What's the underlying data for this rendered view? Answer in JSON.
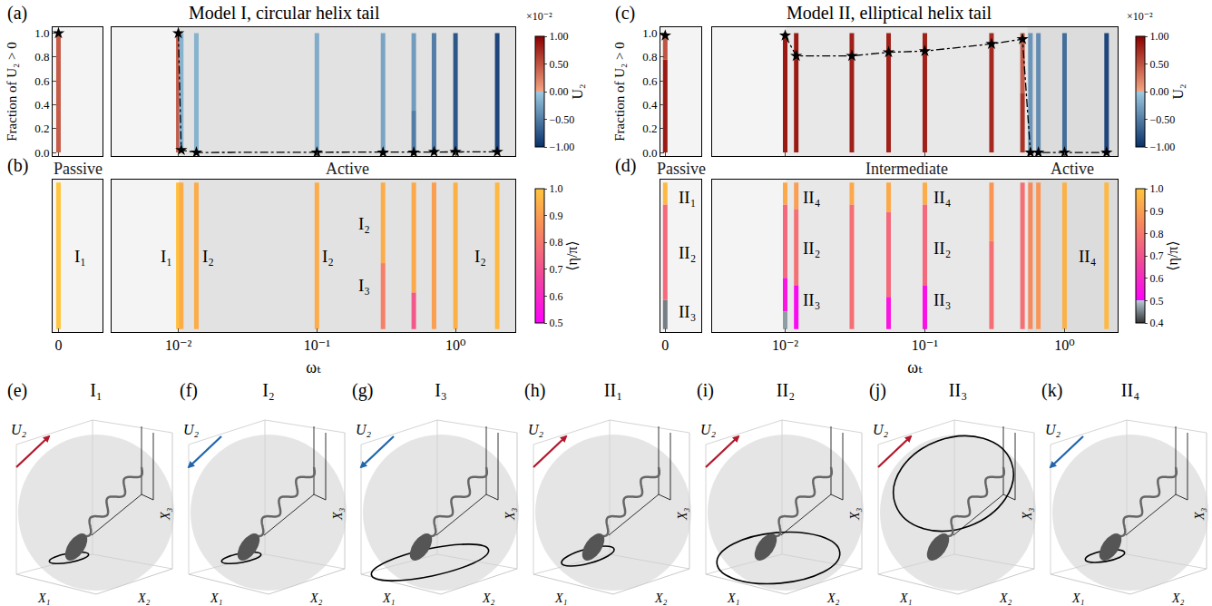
{
  "chart_data": [
    {
      "panel": "(a)",
      "type": "strip",
      "title": "Model I, circular helix tail",
      "y_label": "Fraction of U₂ > 0",
      "log": "x",
      "x": [
        0,
        0.01,
        0.0105,
        0.0135,
        0.1,
        0.3,
        0.5,
        0.7,
        1.0,
        2.0
      ],
      "values": [
        1.0,
        1.0,
        0.02,
        0.0,
        0.0,
        0.0,
        0.0,
        0.005,
        0.005,
        0.005
      ],
      "line_style": "dashdot",
      "marker": "star",
      "color": "#000000",
      "segments": [
        [
          [
            0,
            1,
            0.45
          ]
        ],
        [
          [
            0,
            1,
            0.45
          ]
        ],
        [
          [
            0,
            1,
            -0.15
          ]
        ],
        [
          [
            0,
            1,
            -0.15
          ]
        ],
        [
          [
            0,
            1,
            -0.2
          ]
        ],
        [
          [
            0,
            1,
            -0.25
          ]
        ],
        [
          [
            0,
            0.35,
            -0.5
          ],
          [
            0.35,
            1,
            -0.3
          ]
        ],
        [
          [
            0,
            1,
            -0.5
          ]
        ],
        [
          [
            0,
            1,
            -0.75
          ]
        ],
        [
          [
            0,
            1,
            -0.85
          ]
        ]
      ],
      "colorbar": {
        "title": "U₂",
        "scale_label": "×10⁻²",
        "range": [
          -1,
          1
        ],
        "ticks": [
          {
            "value": -1,
            "label": "−1.00"
          },
          {
            "value": -0.5,
            "label": "−0.50"
          },
          {
            "value": 0,
            "label": "0.00"
          },
          {
            "value": 0.5,
            "label": "0.50"
          },
          {
            "value": 1,
            "label": "1.00"
          }
        ]
      },
      "break_xlim": [
        -0.2,
        1.5
      ],
      "break_xticks": [
        0
      ],
      "xlim": [
        0.0033,
        2.7
      ],
      "xticks": [
        {
          "value": 0.01,
          "label": "10⁻²"
        },
        {
          "value": 0.1,
          "label": "10⁻¹"
        },
        {
          "value": 1,
          "label": "10⁰"
        }
      ],
      "ylim": [
        -0.03,
        1.05
      ],
      "yticks": [
        {
          "value": 0,
          "label": "0.0"
        },
        0.2,
        0.4,
        0.6,
        0.8,
        {
          "value": 1,
          "label": "1.0"
        }
      ],
      "regions": [
        {
          "from": 0,
          "to": 0.0101,
          "color": "#f4f4f4"
        },
        {
          "from": 0.0101,
          "to": 2.7,
          "color": "#e2e2e2"
        }
      ],
      "tick_labels": "y"
    },
    {
      "panel": "(b)",
      "type": "strip",
      "x_label": "ωₜ",
      "log": "x",
      "x": [
        0,
        0.01,
        0.0105,
        0.0135,
        0.1,
        0.3,
        0.5,
        0.7,
        1.0,
        2.0
      ],
      "segments": [
        [
          [
            0,
            1,
            1.0
          ]
        ],
        [
          [
            0,
            1,
            0.99
          ]
        ],
        [
          [
            0,
            1,
            0.94
          ]
        ],
        [
          [
            0,
            1,
            0.94
          ]
        ],
        [
          [
            0,
            1,
            0.94
          ]
        ],
        [
          [
            0,
            0.45,
            0.82
          ],
          [
            0.45,
            1,
            0.94
          ]
        ],
        [
          [
            0,
            0.25,
            0.72
          ],
          [
            0.25,
            1,
            0.93
          ]
        ],
        [
          [
            0,
            1,
            0.9
          ]
        ],
        [
          [
            0,
            1,
            0.95
          ]
        ],
        [
          [
            0,
            1,
            0.97
          ]
        ]
      ],
      "colorbar": {
        "title": "⟨η/π⟩",
        "range": [
          0.5,
          1
        ],
        "ticks": [
          0.5,
          0.6,
          0.7,
          0.8,
          0.9,
          {
            "value": 1,
            "label": "1.0"
          }
        ]
      },
      "break_xlim": [
        -0.2,
        1.5
      ],
      "break_xticks": [
        0
      ],
      "xlim": [
        0.0033,
        2.7
      ],
      "xticks": [
        {
          "value": 0.01,
          "label": "10⁻²"
        },
        {
          "value": 0.1,
          "label": "10⁻¹"
        },
        {
          "value": 1,
          "label": "10⁰"
        }
      ],
      "ylim": [
        -0.02,
        1.02
      ],
      "regions": [
        {
          "name": "Passive",
          "from": 0,
          "to": 0.0101,
          "color": "#f4f4f4"
        },
        {
          "name": "Active",
          "from": 0.0101,
          "to": 2.7,
          "color": "#e2e2e2"
        }
      ],
      "break_annotations": [
        {
          "text": "I₁",
          "x": 0.75,
          "y": 0.5
        }
      ],
      "annotations": [
        {
          "text": "I₁",
          "x": 0.0082,
          "y": 0.5
        },
        {
          "text": "I₂",
          "x": 0.0165,
          "y": 0.5
        },
        {
          "text": "I₂",
          "x": 0.12,
          "y": 0.5
        },
        {
          "text": "I₂",
          "x": 0.22,
          "y": 0.72
        },
        {
          "text": "I₃",
          "x": 0.22,
          "y": 0.3
        },
        {
          "text": "I₂",
          "x": 1.5,
          "y": 0.5
        }
      ],
      "tick_labels": "x"
    },
    {
      "panel": "(c)",
      "type": "strip",
      "title": "Model II, elliptical helix tail",
      "y_label": "Fraction of U₂ > 0",
      "log": "x",
      "x": [
        0,
        0.01,
        0.012,
        0.03,
        0.055,
        0.1,
        0.3,
        0.5,
        0.57,
        0.65,
        1.0,
        2.0
      ],
      "values": [
        0.98,
        0.98,
        0.81,
        0.81,
        0.84,
        0.85,
        0.91,
        0.95,
        0.0,
        0.0,
        0.0,
        0.0
      ],
      "line_style": "dashdot",
      "marker": "star",
      "color": "#000000",
      "segments": [
        [
          [
            0,
            0.78,
            0.85
          ],
          [
            0.78,
            1,
            0.5
          ]
        ],
        [
          [
            0,
            1,
            0.85
          ]
        ],
        [
          [
            0,
            1,
            0.85
          ]
        ],
        [
          [
            0,
            1,
            0.8
          ]
        ],
        [
          [
            0,
            1,
            0.8
          ]
        ],
        [
          [
            0,
            1,
            0.8
          ]
        ],
        [
          [
            0,
            1,
            0.75
          ]
        ],
        [
          [
            0,
            0.5,
            0.7
          ],
          [
            0.5,
            1,
            0.45
          ]
        ],
        [
          [
            0,
            1,
            -0.35
          ]
        ],
        [
          [
            0,
            1,
            -0.4
          ]
        ],
        [
          [
            0,
            1,
            -0.6
          ]
        ],
        [
          [
            0,
            1,
            -0.85
          ]
        ]
      ],
      "colorbar": {
        "title": "U₂",
        "scale_label": "×10⁻²",
        "range": [
          -1,
          1
        ],
        "ticks": [
          {
            "value": -1,
            "label": "−1.00"
          },
          {
            "value": -0.5,
            "label": "−0.50"
          },
          {
            "value": 0,
            "label": "0.00"
          },
          {
            "value": 0.5,
            "label": "0.50"
          },
          {
            "value": 1,
            "label": "1.00"
          }
        ]
      },
      "break_xlim": [
        -0.2,
        1.5
      ],
      "break_xticks": [
        0
      ],
      "xlim": [
        0.003,
        2.4
      ],
      "xticks": [
        {
          "value": 0.01,
          "label": "10⁻²"
        },
        {
          "value": 0.1,
          "label": "10⁻¹"
        },
        {
          "value": 1,
          "label": "10⁰"
        }
      ],
      "ylim": [
        -0.03,
        1.05
      ],
      "yticks": [
        {
          "value": 0,
          "label": "0.0"
        },
        0.2,
        0.4,
        0.6,
        0.8,
        {
          "value": 1,
          "label": "1.0"
        }
      ],
      "regions": [
        {
          "from": 0,
          "to": 0.0101,
          "color": "#f4f4f4"
        },
        {
          "from": 0.0101,
          "to": 0.54,
          "color": "#e8e8e8"
        },
        {
          "from": 0.54,
          "to": 2.4,
          "color": "#dcdcdc"
        }
      ],
      "tick_labels": "y"
    },
    {
      "panel": "(d)",
      "type": "strip",
      "x_label": "ωₜ",
      "log": "x",
      "x": [
        0,
        0.01,
        0.012,
        0.03,
        0.055,
        0.1,
        0.3,
        0.5,
        0.57,
        0.65,
        1.0,
        2.0
      ],
      "segments": [
        [
          [
            0,
            0.2,
            0.45
          ],
          [
            0.2,
            0.85,
            0.76
          ],
          [
            0.85,
            1,
            0.97
          ]
        ],
        [
          [
            0,
            0.12,
            0.47
          ],
          [
            0.12,
            0.35,
            0.55
          ],
          [
            0.35,
            0.85,
            0.76
          ],
          [
            0.85,
            1,
            0.93
          ]
        ],
        [
          [
            0,
            0.3,
            0.52
          ],
          [
            0.3,
            0.82,
            0.78
          ],
          [
            0.82,
            1,
            0.9
          ]
        ],
        [
          [
            0,
            0.85,
            0.78
          ],
          [
            0.85,
            1,
            0.93
          ]
        ],
        [
          [
            0,
            0.22,
            0.55
          ],
          [
            0.22,
            0.8,
            0.76
          ],
          [
            0.8,
            1,
            0.93
          ]
        ],
        [
          [
            0,
            0.3,
            0.54
          ],
          [
            0.3,
            0.85,
            0.76
          ],
          [
            0.85,
            1,
            0.94
          ]
        ],
        [
          [
            0,
            0.6,
            0.78
          ],
          [
            0.6,
            1,
            0.88
          ]
        ],
        [
          [
            0,
            1,
            0.78
          ]
        ],
        [
          [
            0,
            1,
            0.85
          ]
        ],
        [
          [
            0,
            1,
            0.88
          ]
        ],
        [
          [
            0,
            1,
            0.95
          ]
        ],
        [
          [
            0,
            1,
            0.97
          ]
        ]
      ],
      "colorbar": {
        "title": "⟨η/π⟩",
        "range": [
          0.4,
          1
        ],
        "ticks": [
          0.4,
          0.5,
          0.6,
          0.7,
          0.8,
          0.9,
          {
            "value": 1,
            "label": "1.0"
          }
        ]
      },
      "break_xlim": [
        -0.2,
        1.5
      ],
      "break_xticks": [
        0
      ],
      "xlim": [
        0.003,
        2.4
      ],
      "xticks": [
        {
          "value": 0.01,
          "label": "10⁻²"
        },
        {
          "value": 0.1,
          "label": "10⁻¹"
        },
        {
          "value": 1,
          "label": "10⁰"
        }
      ],
      "ylim": [
        -0.02,
        1.02
      ],
      "regions": [
        {
          "name": "Passive",
          "from": 0,
          "to": 0.0101,
          "color": "#f4f4f4"
        },
        {
          "name": "Intermediate",
          "from": 0.0101,
          "to": 0.54,
          "color": "#e8e8e8"
        },
        {
          "name": "Active",
          "from": 0.54,
          "to": 2.4,
          "color": "#dcdcdc"
        }
      ],
      "break_annotations": [
        {
          "text": "II₁",
          "x": 0.9,
          "y": 0.9
        },
        {
          "text": "II₂",
          "x": 0.9,
          "y": 0.52
        },
        {
          "text": "II₃",
          "x": 0.9,
          "y": 0.12
        }
      ],
      "annotations": [
        {
          "text": "II₄",
          "x": 0.0155,
          "y": 0.9
        },
        {
          "text": "II₂",
          "x": 0.0155,
          "y": 0.55
        },
        {
          "text": "II₃",
          "x": 0.0155,
          "y": 0.2
        },
        {
          "text": "II₄",
          "x": 0.133,
          "y": 0.9
        },
        {
          "text": "II₂",
          "x": 0.133,
          "y": 0.55
        },
        {
          "text": "II₃",
          "x": 0.133,
          "y": 0.2
        },
        {
          "text": "II₄",
          "x": 1.45,
          "y": 0.5
        }
      ],
      "tick_labels": "x"
    }
  ],
  "illustrations": {
    "axis_labels": [
      "X₁",
      "X₂",
      "X₃"
    ],
    "arrow_label": "U₂",
    "panels": [
      {
        "panel": "(e)",
        "label": "I₁",
        "direction": "positive",
        "color": "#b2182b"
      },
      {
        "panel": "(f)",
        "label": "I₂",
        "direction": "negative",
        "color": "#2166ac"
      },
      {
        "panel": "(g)",
        "label": "I₃",
        "direction": "negative",
        "color": "#2166ac"
      },
      {
        "panel": "(h)",
        "label": "II₁",
        "direction": "positive",
        "color": "#b2182b"
      },
      {
        "panel": "(i)",
        "label": "II₂",
        "direction": "positive",
        "color": "#b2182b"
      },
      {
        "panel": "(j)",
        "label": "II₃",
        "direction": "positive",
        "color": "#b2182b"
      },
      {
        "panel": "(k)",
        "label": "II₄",
        "direction": "negative",
        "color": "#2166ac"
      }
    ]
  }
}
